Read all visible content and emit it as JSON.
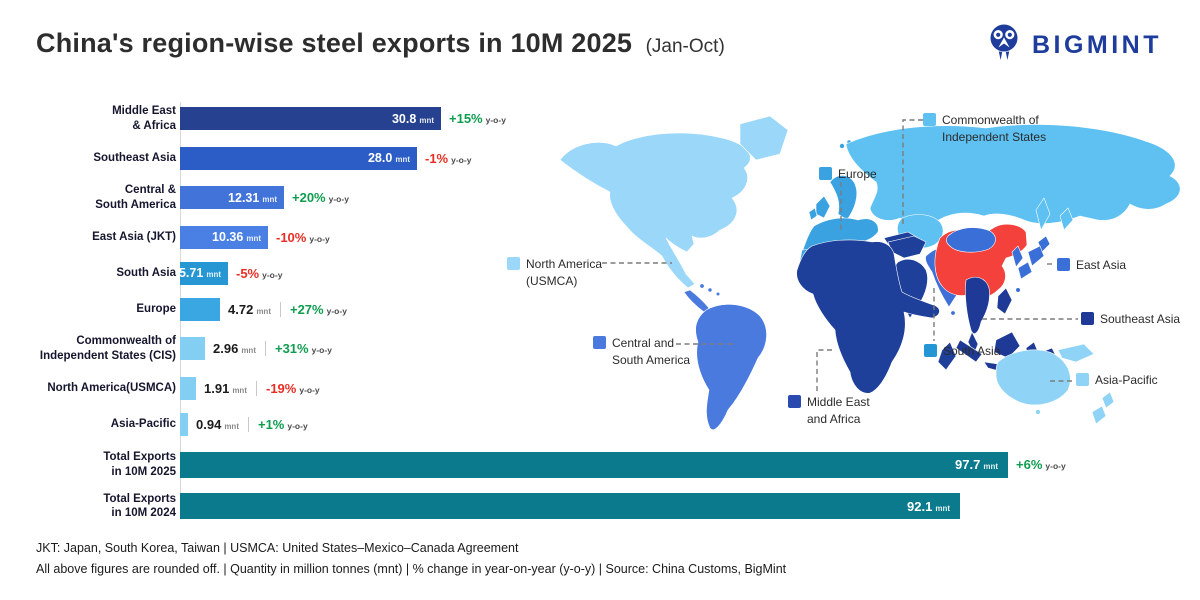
{
  "header": {
    "title": "China's region-wise steel exports in 10M 2025",
    "subtitle": "(Jan-Oct)",
    "brand": "BIGMINT"
  },
  "chart_data": {
    "type": "bar",
    "title": "China's region-wise steel exports in 10M 2025 (Jan-Oct)",
    "unit": "mnt",
    "yoy_label": "y-o-y",
    "xlim": [
      0,
      100
    ],
    "orientation": "horizontal",
    "colors": {
      "positive": "#0f9d4f",
      "negative": "#e82e24"
    },
    "categories": [
      "Middle East & Africa",
      "Southeast Asia",
      "Central & South America",
      "East Asia (JKT)",
      "South Asia",
      "Europe",
      "Commonwealth of Independent States (CIS)",
      "North America(USMCA)",
      "Asia-Pacific",
      "Total Exports in 10M 2025",
      "Total Exports in 10M 2024"
    ],
    "rows": [
      {
        "name": "middle-east-africa",
        "label_lines": [
          "Middle East",
          "& Africa"
        ],
        "value": 30.8,
        "value_text": "30.8",
        "change": "+15%",
        "trend": "positive",
        "color": "#25418f",
        "value_inside": true,
        "total": false
      },
      {
        "name": "southeast-asia",
        "label_lines": [
          "Southeast Asia"
        ],
        "value": 28.0,
        "value_text": "28.0",
        "change": "-1%",
        "trend": "negative",
        "color": "#2c5cc5",
        "value_inside": true,
        "total": false
      },
      {
        "name": "central-south-america",
        "label_lines": [
          "Central &",
          "South America"
        ],
        "value": 12.31,
        "value_text": "12.31",
        "change": "+20%",
        "trend": "positive",
        "color": "#4273d8",
        "value_inside": true,
        "total": false
      },
      {
        "name": "east-asia-jkt",
        "label_lines": [
          "East Asia (JKT)"
        ],
        "value": 10.36,
        "value_text": "10.36",
        "change": "-10%",
        "trend": "negative",
        "color": "#4a80e4",
        "value_inside": true,
        "total": false
      },
      {
        "name": "south-asia",
        "label_lines": [
          "South Asia"
        ],
        "value": 5.71,
        "value_text": "5.71",
        "change": "-5%",
        "trend": "negative",
        "color": "#2697d3",
        "value_inside": true,
        "total": false
      },
      {
        "name": "europe",
        "label_lines": [
          "Europe"
        ],
        "value": 4.72,
        "value_text": "4.72",
        "change": "+27%",
        "trend": "positive",
        "color": "#3aa7e2",
        "value_inside": false,
        "total": false
      },
      {
        "name": "cis",
        "label_lines": [
          "Commonwealth of",
          "Independent States (CIS)"
        ],
        "value": 2.96,
        "value_text": "2.96",
        "change": "+31%",
        "trend": "positive",
        "color": "#83cff4",
        "value_inside": false,
        "total": false
      },
      {
        "name": "north-america-usmca",
        "label_lines": [
          "North America(USMCA)"
        ],
        "value": 1.91,
        "value_text": "1.91",
        "change": "-19%",
        "trend": "negative",
        "color": "#83cff4",
        "value_inside": false,
        "total": false
      },
      {
        "name": "asia-pacific",
        "label_lines": [
          "Asia-Pacific"
        ],
        "value": 0.94,
        "value_text": "0.94",
        "change": "+1%",
        "trend": "positive",
        "color": "#83cff4",
        "value_inside": false,
        "total": false
      },
      {
        "name": "total-2025",
        "label_lines": [
          "Total Exports",
          "in 10M 2025"
        ],
        "value": 97.7,
        "value_text": "97.7",
        "change": "+6%",
        "trend": "positive",
        "color": "#0a7a8c",
        "value_inside": true,
        "total": true
      },
      {
        "name": "total-2024",
        "label_lines": [
          "Total Exports",
          "in 10M 2024"
        ],
        "value": 92.1,
        "value_text": "92.1",
        "change": null,
        "trend": null,
        "color": "#0a7a8c",
        "value_inside": true,
        "total": true
      }
    ]
  },
  "map": {
    "colors": {
      "north_america": "#9bd7f8",
      "central_south_america": "#4a7ade",
      "europe": "#3aa2e0",
      "cis": "#5ec1f1",
      "mea": "#1e3f9a",
      "mea_swatch": "#2b4ab0",
      "south_asia_map": "#3d6fd6",
      "south_asia": "#2496d6",
      "east_asia": "#3a6fd8",
      "southeast_asia": "#1e3a96",
      "asia_pacific": "#8fd4f6",
      "china": "#f4413b"
    },
    "labels": {
      "cis": {
        "line1": "Commonwealth of",
        "line2": "Independent States"
      },
      "europe": {
        "line1": "Europe"
      },
      "north_america": {
        "line1": "North America",
        "line2": "(USMCA)"
      },
      "central_south_america": {
        "line1": "Central and",
        "line2": "South America"
      },
      "mea": {
        "line1": "Middle East",
        "line2": "and Africa"
      },
      "east_asia": {
        "line1": "East Asia"
      },
      "southeast_asia": {
        "line1": "Southeast Asia"
      },
      "south_asia": {
        "line1": "South Asia"
      },
      "asia_pacific": {
        "line1": "Asia-Pacific"
      }
    }
  },
  "footnotes": {
    "line1": "JKT: Japan, South Korea, Taiwan | USMCA: United States–Mexico–Canada Agreement",
    "line2": "All above figures are rounded off. | Quantity in million tonnes (mnt) | % change in year-on-year (y-o-y) | Source: China Customs, BigMint"
  }
}
